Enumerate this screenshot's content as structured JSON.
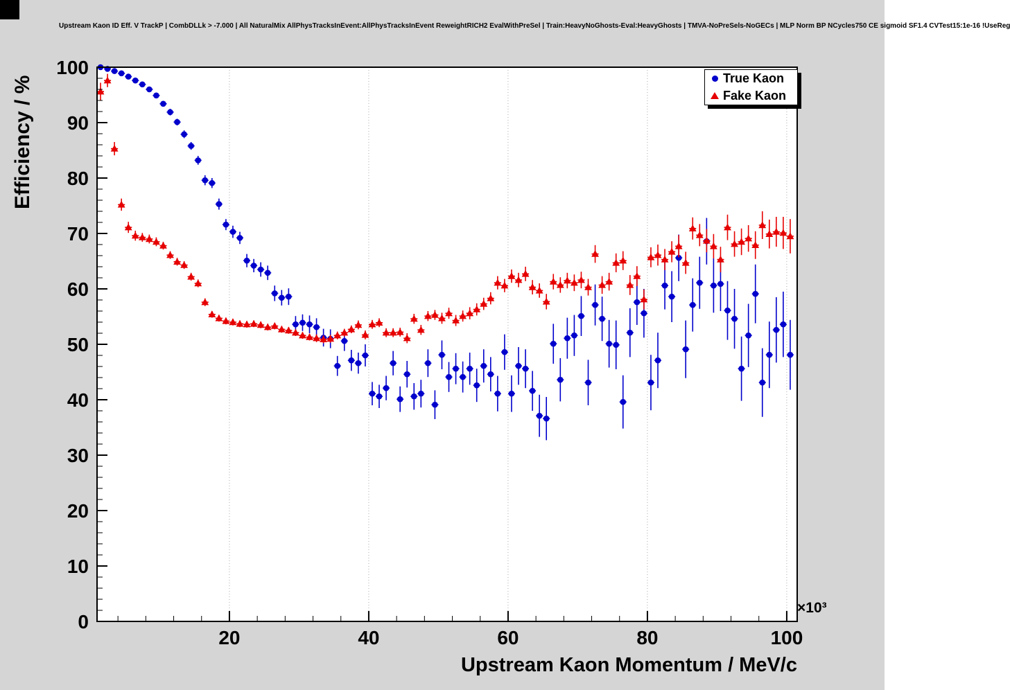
{
  "header": {
    "title": "Upstream Kaon ID Eff. V TrackP | CombDLLk > -7.000 | All NaturalMix AllPhysTracksInEvent:AllPhysTracksInEvent ReweightRICH2 EvalWithPreSel | Train:HeavyNoGhosts-Eval:HeavyGhosts | TMVA-NoPreSels-NoGECs | MLP Norm BP NCycles750 CE sigmoid SF1.4 CVTest15:1e-16 !UseReg"
  },
  "colors": {
    "canvas_bg": "#d5d5d5",
    "plot_bg": "#ffffff",
    "frame": "#000000",
    "grid": "#aaaaaa",
    "true_kaon": "#0000cc",
    "fake_kaon": "#e60000"
  },
  "chart_data": {
    "type": "scatter",
    "title": "Upstream Kaon ID Eff. V TrackP",
    "xlabel": "Upstream Kaon Momentum / MeV/c",
    "ylabel": "Efficiency / %",
    "x_scale_label": "×10³",
    "xlim": [
      1,
      101.5
    ],
    "ylim": [
      0,
      100
    ],
    "xticks": [
      20,
      40,
      60,
      80,
      100
    ],
    "yticks": [
      0,
      10,
      20,
      30,
      40,
      50,
      60,
      70,
      80,
      90,
      100
    ],
    "x_minor_step": 4,
    "y_minor_step": 2,
    "grid": "vertical-dotted",
    "legend_position": "top-right",
    "x_bin_halfwidth": 0.5,
    "series": [
      {
        "name": "True Kaon",
        "marker": "circle",
        "color": "#0000cc",
        "points": [
          [
            1.5,
            100,
            0.2
          ],
          [
            2.5,
            99.7,
            0.2
          ],
          [
            3.5,
            99.3,
            0.3
          ],
          [
            4.5,
            98.9,
            0.3
          ],
          [
            5.5,
            98.3,
            0.3
          ],
          [
            6.5,
            97.6,
            0.4
          ],
          [
            7.5,
            96.9,
            0.4
          ],
          [
            8.5,
            96.0,
            0.4
          ],
          [
            9.5,
            94.9,
            0.5
          ],
          [
            10.5,
            93.4,
            0.5
          ],
          [
            11.5,
            91.9,
            0.6
          ],
          [
            12.5,
            90.1,
            0.6
          ],
          [
            13.5,
            87.9,
            0.7
          ],
          [
            14.5,
            85.8,
            0.7
          ],
          [
            15.5,
            83.2,
            0.8
          ],
          [
            16.5,
            79.6,
            0.9
          ],
          [
            17.5,
            79.1,
            0.9
          ],
          [
            18.5,
            75.3,
            1.0
          ],
          [
            19.5,
            71.6,
            1.0
          ],
          [
            20.5,
            70.3,
            1.1
          ],
          [
            21.5,
            69.2,
            1.1
          ],
          [
            22.5,
            65.1,
            1.2
          ],
          [
            23.5,
            64.2,
            1.2
          ],
          [
            24.5,
            63.5,
            1.3
          ],
          [
            25.5,
            62.9,
            1.3
          ],
          [
            26.5,
            59.2,
            1.4
          ],
          [
            27.5,
            58.4,
            1.4
          ],
          [
            28.5,
            58.6,
            1.5
          ],
          [
            29.5,
            53.6,
            1.5
          ],
          [
            30.5,
            53.9,
            1.5
          ],
          [
            31.5,
            53.6,
            1.6
          ],
          [
            32.5,
            53.1,
            1.6
          ],
          [
            33.5,
            51.2,
            1.6
          ],
          [
            34.5,
            51.0,
            1.7
          ],
          [
            35.5,
            46.1,
            1.8
          ],
          [
            36.5,
            50.6,
            1.8
          ],
          [
            37.5,
            47.1,
            1.9
          ],
          [
            38.5,
            46.6,
            1.9
          ],
          [
            39.5,
            48.0,
            2.0
          ],
          [
            40.5,
            41.1,
            2.1
          ],
          [
            41.5,
            40.6,
            2.1
          ],
          [
            42.5,
            42.1,
            2.2
          ],
          [
            43.5,
            46.6,
            2.2
          ],
          [
            44.5,
            40.1,
            2.3
          ],
          [
            45.5,
            44.6,
            2.4
          ],
          [
            46.5,
            40.6,
            2.4
          ],
          [
            47.5,
            41.1,
            2.5
          ],
          [
            48.5,
            46.6,
            2.5
          ],
          [
            49.5,
            39.1,
            2.6
          ],
          [
            50.5,
            48.1,
            2.6
          ],
          [
            51.5,
            44.1,
            2.7
          ],
          [
            52.5,
            45.6,
            2.8
          ],
          [
            53.5,
            44.1,
            2.8
          ],
          [
            54.5,
            45.6,
            2.9
          ],
          [
            55.5,
            42.6,
            3.0
          ],
          [
            56.5,
            46.1,
            3.0
          ],
          [
            57.5,
            44.6,
            3.1
          ],
          [
            58.5,
            41.1,
            3.2
          ],
          [
            59.5,
            48.6,
            3.2
          ],
          [
            60.5,
            41.1,
            3.3
          ],
          [
            61.5,
            46.1,
            3.4
          ],
          [
            62.5,
            45.6,
            3.5
          ],
          [
            63.5,
            41.6,
            3.6
          ],
          [
            64.5,
            37.1,
            3.8
          ],
          [
            65.5,
            36.6,
            3.9
          ],
          [
            66.5,
            50.1,
            3.6
          ],
          [
            67.5,
            43.6,
            3.9
          ],
          [
            68.5,
            51.1,
            3.7
          ],
          [
            69.5,
            51.6,
            3.7
          ],
          [
            70.5,
            55.1,
            3.6
          ],
          [
            71.5,
            43.1,
            4.1
          ],
          [
            72.5,
            57.1,
            3.7
          ],
          [
            73.5,
            54.6,
            4.0
          ],
          [
            74.5,
            50.1,
            4.3
          ],
          [
            75.5,
            49.9,
            4.4
          ],
          [
            76.5,
            39.6,
            4.8
          ],
          [
            77.5,
            52.1,
            4.4
          ],
          [
            78.5,
            57.6,
            4.1
          ],
          [
            79.5,
            55.6,
            4.4
          ],
          [
            80.5,
            43.1,
            5.0
          ],
          [
            81.5,
            47.1,
            5.0
          ],
          [
            82.5,
            60.6,
            4.3
          ],
          [
            83.5,
            58.6,
            4.6
          ],
          [
            84.5,
            65.6,
            4.2
          ],
          [
            85.5,
            49.1,
            5.2
          ],
          [
            86.5,
            57.1,
            4.8
          ],
          [
            87.5,
            61.1,
            4.7
          ],
          [
            88.5,
            68.6,
            4.2
          ],
          [
            89.5,
            60.6,
            4.9
          ],
          [
            90.5,
            60.9,
            4.9
          ],
          [
            91.5,
            56.1,
            5.3
          ],
          [
            92.5,
            54.6,
            5.4
          ],
          [
            93.5,
            45.6,
            5.8
          ],
          [
            94.5,
            51.6,
            5.7
          ],
          [
            95.5,
            59.1,
            5.3
          ],
          [
            96.5,
            43.1,
            6.2
          ],
          [
            97.5,
            48.1,
            6.0
          ],
          [
            98.5,
            52.6,
            5.9
          ],
          [
            99.5,
            53.6,
            5.9
          ],
          [
            100.5,
            48.1,
            6.3
          ]
        ]
      },
      {
        "name": "Fake Kaon",
        "marker": "triangle",
        "color": "#e60000",
        "points": [
          [
            1.5,
            95.6,
            1.6
          ],
          [
            2.5,
            97.6,
            1.2
          ],
          [
            3.5,
            85.3,
            1.2
          ],
          [
            4.5,
            75.2,
            1.1
          ],
          [
            5.5,
            71.1,
            1.0
          ],
          [
            6.5,
            69.6,
            0.9
          ],
          [
            7.5,
            69.3,
            0.8
          ],
          [
            8.5,
            69.0,
            0.8
          ],
          [
            9.5,
            68.5,
            0.8
          ],
          [
            10.5,
            67.8,
            0.7
          ],
          [
            11.5,
            66.1,
            0.7
          ],
          [
            12.5,
            64.9,
            0.7
          ],
          [
            13.5,
            64.3,
            0.7
          ],
          [
            14.5,
            62.2,
            0.7
          ],
          [
            15.5,
            61.0,
            0.7
          ],
          [
            16.5,
            57.6,
            0.7
          ],
          [
            17.5,
            55.4,
            0.6
          ],
          [
            18.5,
            54.7,
            0.6
          ],
          [
            19.5,
            54.2,
            0.6
          ],
          [
            20.5,
            54.0,
            0.6
          ],
          [
            21.5,
            53.7,
            0.6
          ],
          [
            22.5,
            53.6,
            0.6
          ],
          [
            23.5,
            53.7,
            0.6
          ],
          [
            24.5,
            53.5,
            0.6
          ],
          [
            25.5,
            53.1,
            0.6
          ],
          [
            26.5,
            53.3,
            0.6
          ],
          [
            27.5,
            52.7,
            0.6
          ],
          [
            28.5,
            52.5,
            0.6
          ],
          [
            29.5,
            52.1,
            0.6
          ],
          [
            30.5,
            51.6,
            0.6
          ],
          [
            31.5,
            51.3,
            0.6
          ],
          [
            32.5,
            51.1,
            0.7
          ],
          [
            33.5,
            50.9,
            0.7
          ],
          [
            34.5,
            51.0,
            0.7
          ],
          [
            35.5,
            51.6,
            0.7
          ],
          [
            36.5,
            52.1,
            0.7
          ],
          [
            37.5,
            52.7,
            0.7
          ],
          [
            38.5,
            53.5,
            0.8
          ],
          [
            39.5,
            51.7,
            0.8
          ],
          [
            40.5,
            53.6,
            0.8
          ],
          [
            41.5,
            53.9,
            0.8
          ],
          [
            42.5,
            52.1,
            0.8
          ],
          [
            43.5,
            52.1,
            0.8
          ],
          [
            44.5,
            52.2,
            0.8
          ],
          [
            45.5,
            51.1,
            0.9
          ],
          [
            46.5,
            54.6,
            0.9
          ],
          [
            47.5,
            52.6,
            0.9
          ],
          [
            48.5,
            55.1,
            0.9
          ],
          [
            49.5,
            55.3,
            0.9
          ],
          [
            50.5,
            54.7,
            1.0
          ],
          [
            51.5,
            55.6,
            1.0
          ],
          [
            52.5,
            54.3,
            1.0
          ],
          [
            53.5,
            55.1,
            1.0
          ],
          [
            54.5,
            55.6,
            1.1
          ],
          [
            55.5,
            56.3,
            1.1
          ],
          [
            56.5,
            57.3,
            1.1
          ],
          [
            57.5,
            58.3,
            1.1
          ],
          [
            58.5,
            61.1,
            1.2
          ],
          [
            59.5,
            60.6,
            1.2
          ],
          [
            60.5,
            62.3,
            1.2
          ],
          [
            61.5,
            61.6,
            1.3
          ],
          [
            62.5,
            62.7,
            1.3
          ],
          [
            63.5,
            60.3,
            1.3
          ],
          [
            64.5,
            59.7,
            1.3
          ],
          [
            65.5,
            57.7,
            1.4
          ],
          [
            66.5,
            61.3,
            1.4
          ],
          [
            67.5,
            60.7,
            1.4
          ],
          [
            68.5,
            61.5,
            1.4
          ],
          [
            69.5,
            61.1,
            1.5
          ],
          [
            70.5,
            61.6,
            1.5
          ],
          [
            71.5,
            60.3,
            1.5
          ],
          [
            72.5,
            66.3,
            1.6
          ],
          [
            73.5,
            60.7,
            1.6
          ],
          [
            74.5,
            61.3,
            1.6
          ],
          [
            75.5,
            64.7,
            1.7
          ],
          [
            76.5,
            65.1,
            1.7
          ],
          [
            77.5,
            60.7,
            1.8
          ],
          [
            78.5,
            62.3,
            1.8
          ],
          [
            79.5,
            58.1,
            1.8
          ],
          [
            80.5,
            65.7,
            1.8
          ],
          [
            81.5,
            66.1,
            1.9
          ],
          [
            82.5,
            65.3,
            1.9
          ],
          [
            83.5,
            66.7,
            1.9
          ],
          [
            84.5,
            67.7,
            2.0
          ],
          [
            85.5,
            64.7,
            2.0
          ],
          [
            86.5,
            70.9,
            2.0
          ],
          [
            87.5,
            69.7,
            2.0
          ],
          [
            88.5,
            68.7,
            2.1
          ],
          [
            89.5,
            67.7,
            2.2
          ],
          [
            90.5,
            65.3,
            2.3
          ],
          [
            91.5,
            71.1,
            2.3
          ],
          [
            92.5,
            68.1,
            2.3
          ],
          [
            93.5,
            68.5,
            2.4
          ],
          [
            94.5,
            69.1,
            2.4
          ],
          [
            95.5,
            67.9,
            2.5
          ],
          [
            96.5,
            71.5,
            2.5
          ],
          [
            97.5,
            69.9,
            2.6
          ],
          [
            98.5,
            70.3,
            2.7
          ],
          [
            99.5,
            70.1,
            2.9
          ],
          [
            100.5,
            69.5,
            3.1
          ]
        ]
      }
    ]
  }
}
